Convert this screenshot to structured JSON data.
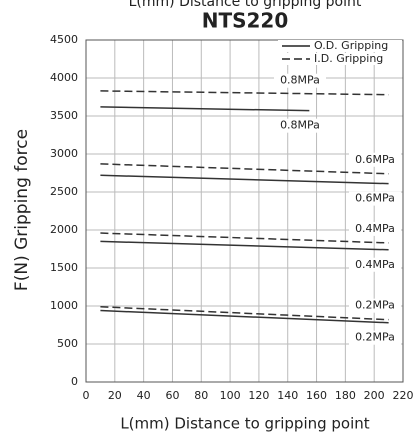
{
  "chart_data": {
    "type": "line",
    "subtitle": "L(mm)  Distance to gripping point",
    "title": "NTS220",
    "x_label": "L(mm)  Distance to gripping point",
    "y_label": "F(N) Gripping force",
    "xlim": [
      0,
      220
    ],
    "xticks": [
      0,
      20,
      40,
      60,
      80,
      100,
      120,
      140,
      160,
      180,
      200,
      220
    ],
    "ylim": [
      0,
      4500
    ],
    "yticks": [
      0,
      500,
      1000,
      1500,
      2000,
      2500,
      3000,
      3500,
      4000,
      4500
    ],
    "grid": true,
    "legend_position": "upper right",
    "legend": [
      {
        "label": "O.D. Gripping",
        "style": "solid"
      },
      {
        "label": "I.D. Gripping",
        "style": "dashed"
      }
    ],
    "series": [
      {
        "label": "0.8MPa",
        "style": "dashed",
        "color": "#333333",
        "x": [
          10,
          210
        ],
        "values": [
          3830,
          3780
        ]
      },
      {
        "label": "0.8MPa",
        "style": "solid",
        "color": "#333333",
        "x": [
          10,
          155
        ],
        "values": [
          3620,
          3570
        ]
      },
      {
        "label": "0.6MPa",
        "style": "dashed",
        "color": "#333333",
        "x": [
          10,
          210
        ],
        "values": [
          2870,
          2740
        ]
      },
      {
        "label": "0.6MPa",
        "style": "solid",
        "color": "#333333",
        "x": [
          10,
          210
        ],
        "values": [
          2720,
          2610
        ]
      },
      {
        "label": "0.4MPa",
        "style": "dashed",
        "color": "#333333",
        "x": [
          10,
          210
        ],
        "values": [
          1960,
          1830
        ]
      },
      {
        "label": "0.4MPa",
        "style": "solid",
        "color": "#333333",
        "x": [
          10,
          210
        ],
        "values": [
          1850,
          1740
        ]
      },
      {
        "label": "0.2MPa",
        "style": "dashed",
        "color": "#333333",
        "x": [
          10,
          210
        ],
        "values": [
          990,
          820
        ]
      },
      {
        "label": "0.2MPa",
        "style": "solid",
        "color": "#333333",
        "x": [
          10,
          210
        ],
        "values": [
          940,
          780
        ]
      }
    ]
  }
}
